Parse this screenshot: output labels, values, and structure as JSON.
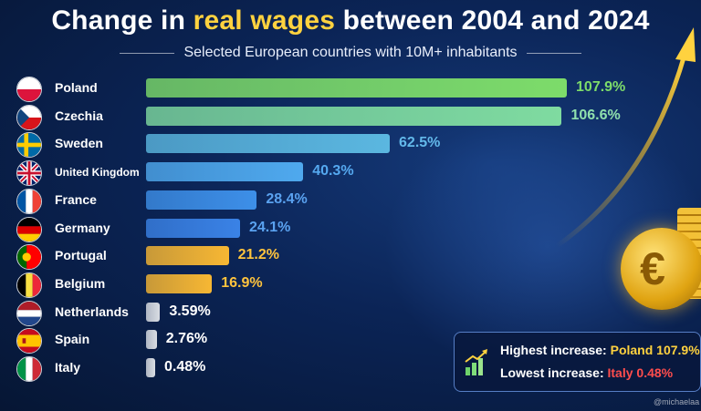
{
  "title": {
    "part1": "Change in ",
    "highlight": "real wages",
    "part2": " between 2004 and 2024"
  },
  "subtitle": "Selected European countries with 10M+ inhabitants",
  "chart_data": {
    "type": "bar",
    "orientation": "horizontal",
    "categories": [
      "Poland",
      "Czechia",
      "Sweden",
      "United Kingdom",
      "France",
      "Germany",
      "Portugal",
      "Belgium",
      "Netherlands",
      "Spain",
      "Italy"
    ],
    "values": [
      107.9,
      106.6,
      62.5,
      40.3,
      28.4,
      24.1,
      21.2,
      16.9,
      3.59,
      2.76,
      0.48
    ],
    "value_labels": [
      "107.9%",
      "106.6%",
      "62.5%",
      "40.3%",
      "28.4%",
      "24.1%",
      "21.2%",
      "16.9%",
      "3.59%",
      "2.76%",
      "0.48%"
    ],
    "unit": "%",
    "xlim": [
      0,
      110
    ],
    "grid": false,
    "colors": [
      "#7ddc6a",
      "#7fdba0",
      "#5bb7e0",
      "#4fa9ee",
      "#3d8fe8",
      "#3a82e6",
      "#f7b733",
      "#f7b733",
      "#d9dde3",
      "#d9dde3",
      "#d9dde3"
    ],
    "value_colors": [
      "#7ddc6a",
      "#8fe0ad",
      "#63b9ea",
      "#55a9f0",
      "#5aa2f0",
      "#5aa2f0",
      "#ffc43d",
      "#ffc43d",
      "#ffffff",
      "#ffffff",
      "#ffffff"
    ]
  },
  "flags": [
    "poland-flag-icon",
    "czechia-flag-icon",
    "sweden-flag-icon",
    "united-kingdom-flag-icon",
    "france-flag-icon",
    "germany-flag-icon",
    "portugal-flag-icon",
    "belgium-flag-icon",
    "netherlands-flag-icon",
    "spain-flag-icon",
    "italy-flag-icon"
  ],
  "info_box": {
    "highest_label": "Highest increase: ",
    "highest_value": "Poland 107.9%",
    "lowest_label": "Lowest increase: ",
    "lowest_value": "Italy 0.48%",
    "icon": "growth-chart-icon"
  },
  "coin_symbol": "€",
  "watermark": "@michaelaa"
}
